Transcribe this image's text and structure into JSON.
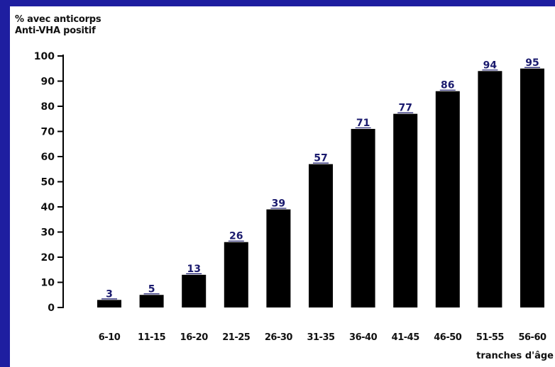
{
  "background_color": "#1e1ea0",
  "chart_data": {
    "type": "bar",
    "ylabel_lines": [
      "% avec anticorps",
      "Anti-VHA positif"
    ],
    "xlabel": "tranches d'âge",
    "categories": [
      "6-10",
      "11-15",
      "16-20",
      "21-25",
      "26-30",
      "31-35",
      "36-40",
      "41-45",
      "46-50",
      "51-55",
      "56-60"
    ],
    "values": [
      3,
      5,
      13,
      26,
      39,
      57,
      71,
      77,
      86,
      94,
      95
    ],
    "data_labels": [
      "3",
      "5",
      "13",
      "26",
      "39",
      "57",
      "71",
      "77",
      "86",
      "94",
      "95"
    ],
    "yticks": [
      0,
      10,
      20,
      30,
      40,
      50,
      60,
      70,
      80,
      90,
      100
    ],
    "ylim": [
      0,
      100
    ],
    "bar_color": "#000000",
    "label_color": "#1a1a6e",
    "grid": false,
    "legend": "none"
  }
}
